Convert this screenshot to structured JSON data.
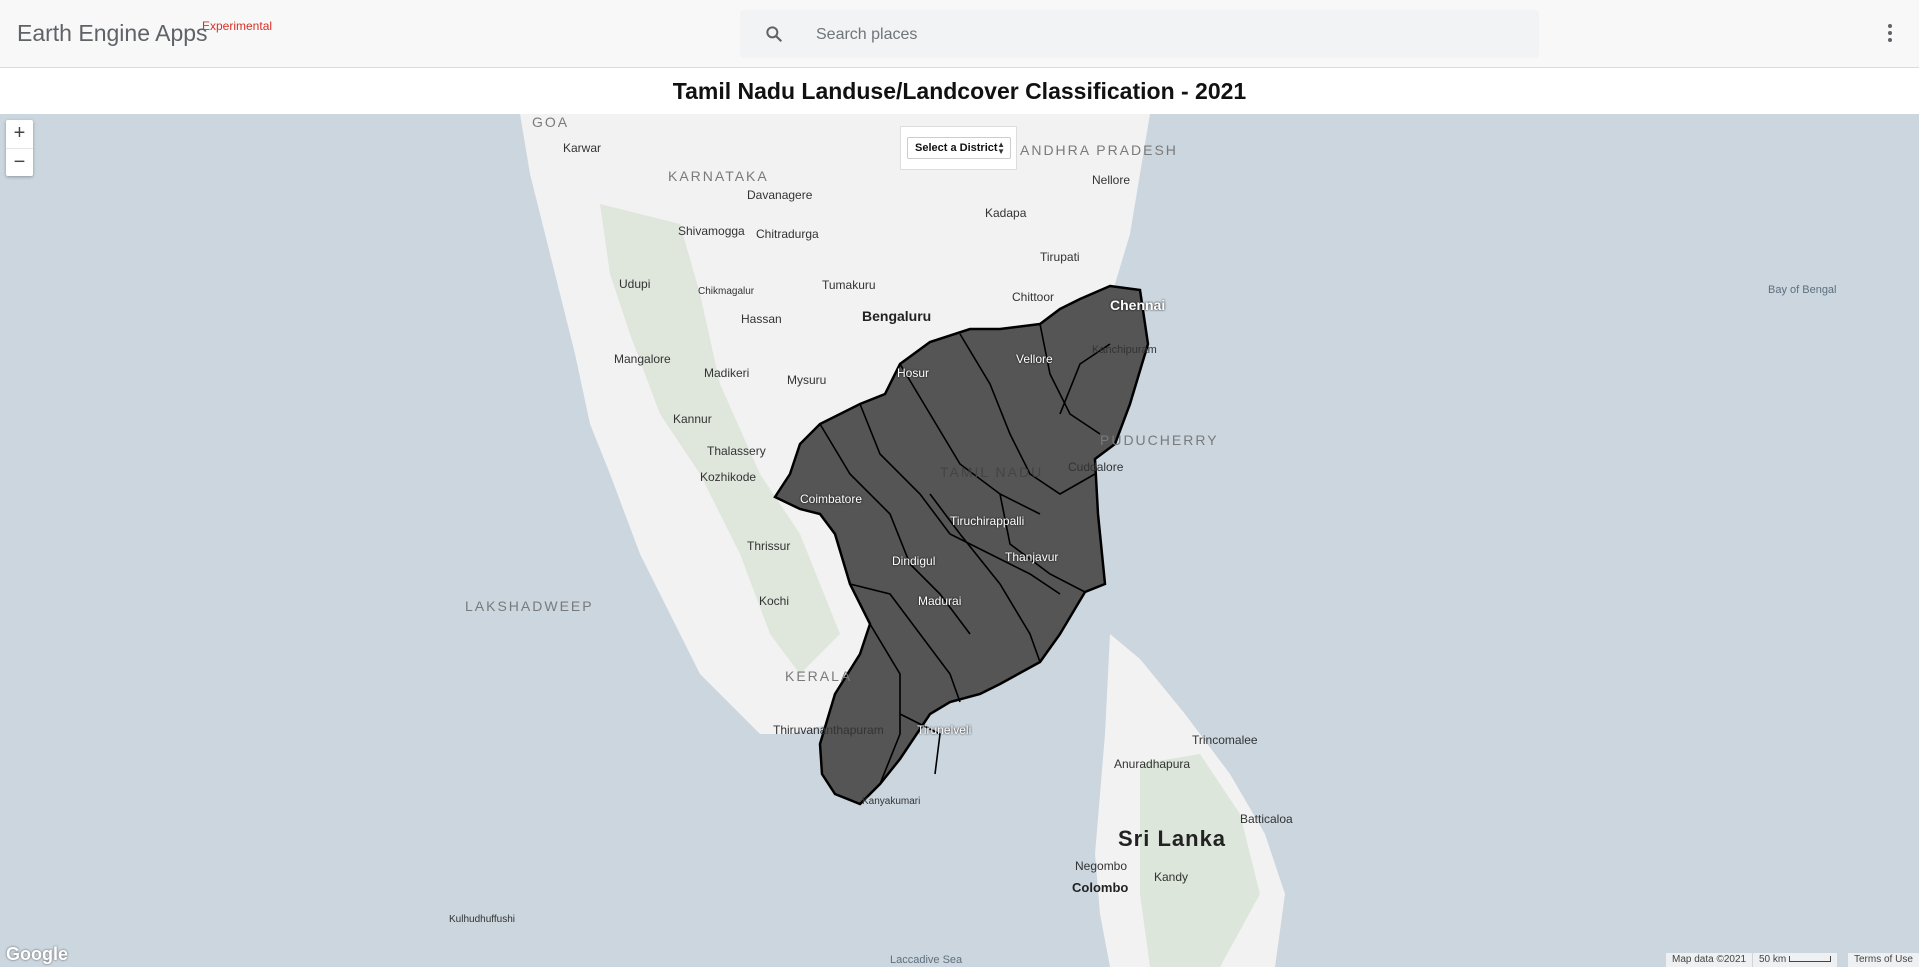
{
  "header": {
    "app_name": "Earth Engine Apps",
    "badge": "Experimental",
    "search_placeholder": "Search places"
  },
  "title": "Tamil Nadu Landuse/Landcover Classification - 2021",
  "controls": {
    "zoom_in": "+",
    "zoom_out": "−",
    "district_select": "Select a District"
  },
  "map_labels": {
    "goa": "GOA",
    "karnataka": "KARNATAKA",
    "andhra": "ANDHRA PRADESH",
    "tamilnadu": "TAMIL NADU",
    "kerala": "KERALA",
    "puducherry": "PUDUCHERRY",
    "lakshadweep": "LAKSHADWEEP",
    "srilanka": "Sri Lanka",
    "bay_of_bengal": "Bay of Bengal",
    "laccadive": "Laccadive Sea",
    "bengaluru": "Bengaluru",
    "chennai": "Chennai",
    "mysuru": "Mysuru",
    "coimbatore": "Coimbatore",
    "madurai": "Madurai",
    "kochi": "Kochi",
    "thrissur": "Thrissur",
    "kozhikode": "Kozhikode",
    "kannur": "Kannur",
    "mangalore": "Mangalore",
    "udupi": "Udupi",
    "hassan": "Hassan",
    "tumakuru": "Tumakuru",
    "nellore": "Nellore",
    "kadapa": "Kadapa",
    "tirupati": "Tirupati",
    "colombo": "Colombo",
    "kandy": "Kandy",
    "negombo": "Negombo",
    "trincomalee": "Trincomalee",
    "batticaloa": "Batticaloa",
    "anuradhapura": "Anuradhapura",
    "kanyakumari": "Kanyakumari",
    "kulhudhuffushi": "Kulhudhuffushi",
    "thiruvananthapuram": "Thiruvananthapuram",
    "tirunelveli": "Tirunelveli",
    "davanagere": "Davanagere",
    "shivamogga": "Shivamogga",
    "chitradurga": "Chitradurga",
    "chikmagalur": "Chikmagalur",
    "madikeri": "Madikeri",
    "karwar": "Karwar",
    "thalassery": "Thalassery",
    "chittoor": "Chittoor",
    "hosur": "Hosur",
    "vellore": "Vellore",
    "kanchipuram": "Kanchipuram",
    "cuddalore": "Cuddalore",
    "tiruchirappalli": "Tiruchirappalli",
    "thanjavur": "Thanjavur",
    "dindigul": "Dindigul"
  },
  "footer": {
    "google": "Google",
    "map_data": "Map data ©2021",
    "scale": "50 km",
    "terms": "Terms of Use"
  },
  "colors": {
    "sea": "#cbd6de",
    "land": "#f2f2f2",
    "districts": "#555555",
    "border": "#000000",
    "badge": "#d93025"
  }
}
